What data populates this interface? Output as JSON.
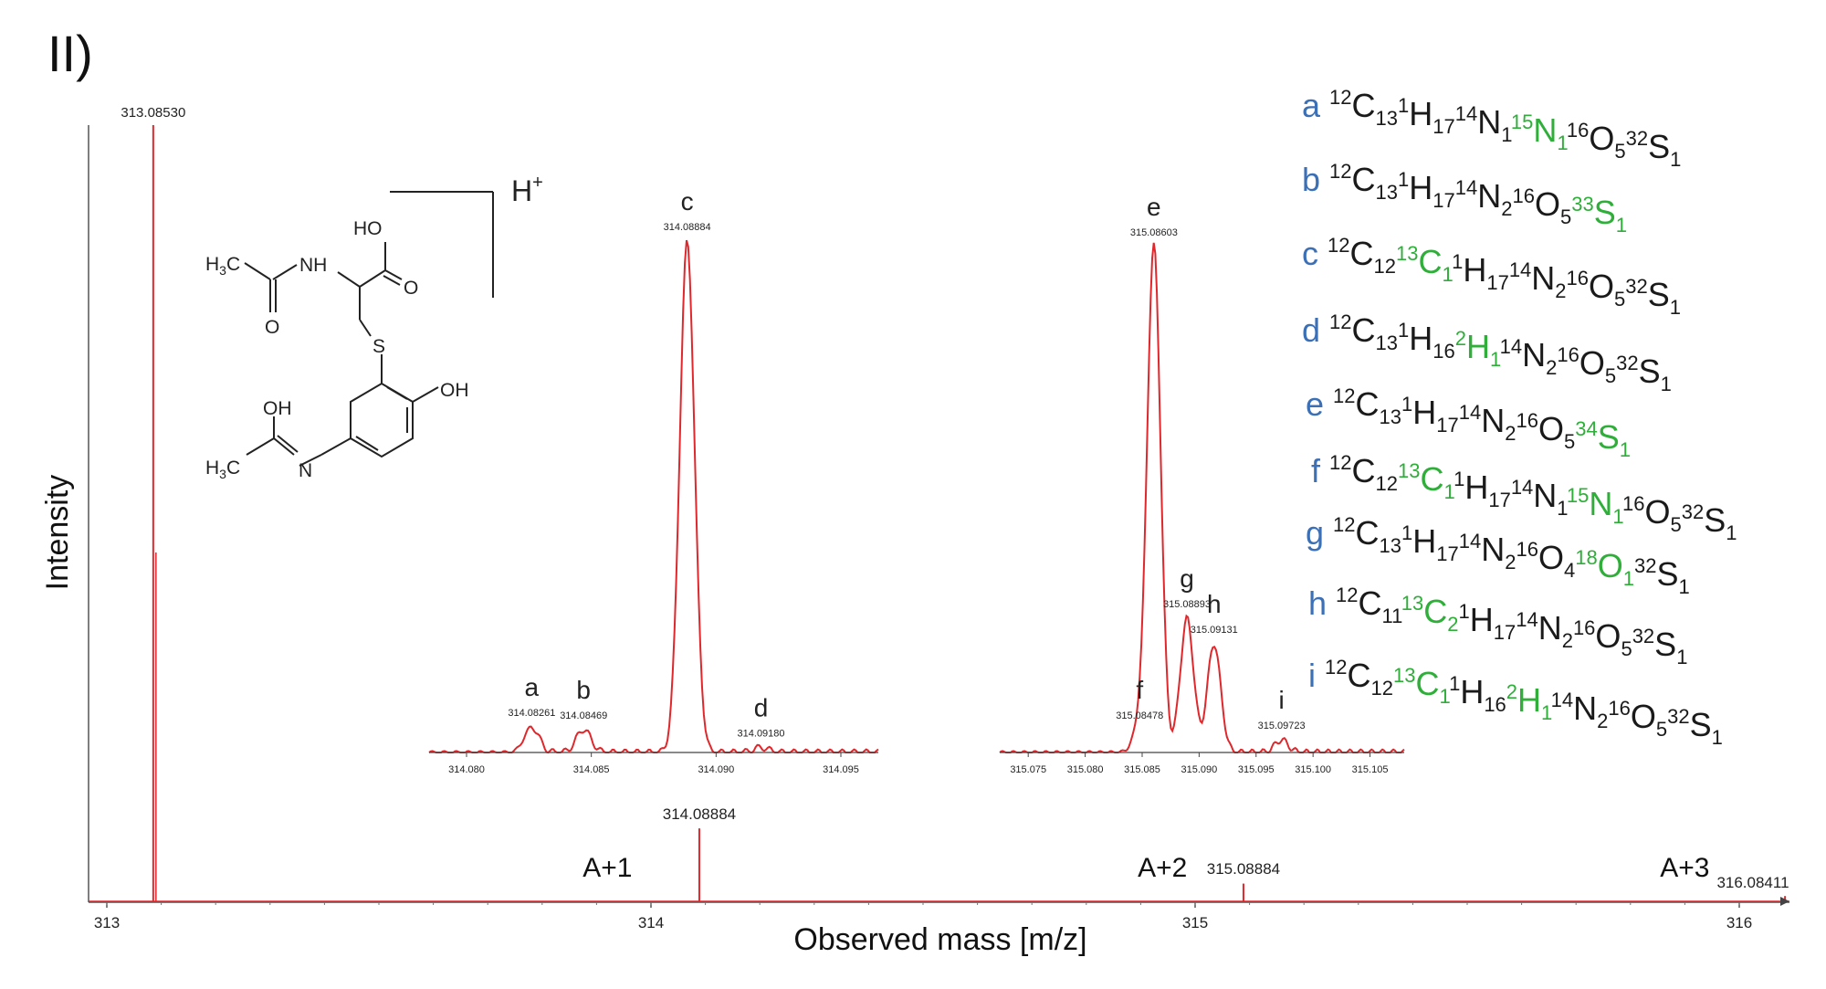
{
  "panel_label": "II)",
  "colors": {
    "trace": "#e0272b",
    "axis": "#555555",
    "letter": "#3b6fb6",
    "isotope": "#2fae3a",
    "text": "#1a1a1a"
  },
  "structure_labels": {
    "h3c_top": "H3C",
    "nh": "NH",
    "o_top": "O",
    "ho": "HO",
    "o_acid": "O",
    "s": "S",
    "oh_ring": "OH",
    "oh_amide": "OH",
    "h3c_bottom": "H3C",
    "n": "N",
    "charge": "H+"
  },
  "chart_data": [
    {
      "id": "main",
      "type": "line",
      "xlabel": "Observed mass [m/z]",
      "ylabel": "Intensity",
      "xlim": [
        313.0,
        316.15
      ],
      "xticks": [
        313,
        314,
        315,
        316
      ],
      "peaks": [
        {
          "x": 313.0853,
          "y": 1.0,
          "label": "313.08530"
        },
        {
          "x": 314.08884,
          "y": 0.095,
          "label": "314.08884"
        },
        {
          "x": 315.08884,
          "y": 0.024,
          "label": "315.08884"
        },
        {
          "x": 316.08411,
          "y": 0.008,
          "label": "316.08411"
        }
      ],
      "annotations": [
        {
          "text": "A+1",
          "x": 313.92
        },
        {
          "text": "A+2",
          "x": 314.94
        },
        {
          "text": "A+3",
          "x": 315.9
        }
      ]
    },
    {
      "id": "inset-A1",
      "type": "line",
      "xlim": [
        314.0785,
        314.0965
      ],
      "xticks": [
        "314.080",
        "314.085",
        "314.090",
        "314.095"
      ],
      "peaks": [
        {
          "x": 314.08261,
          "y": 0.05,
          "label": "314.08261",
          "letter": "a"
        },
        {
          "x": 314.08469,
          "y": 0.045,
          "label": "314.08469",
          "letter": "b"
        },
        {
          "x": 314.08884,
          "y": 1.0,
          "label": "314.08884",
          "letter": "c"
        },
        {
          "x": 314.0918,
          "y": 0.01,
          "label": "314.09180",
          "letter": "d"
        }
      ]
    },
    {
      "id": "inset-A2",
      "type": "line",
      "xlim": [
        315.0725,
        315.108
      ],
      "xticks": [
        "315.075",
        "315.080",
        "315.085",
        "315.090",
        "315.095",
        "315.100",
        "315.105"
      ],
      "peaks": [
        {
          "x": 315.08603,
          "y": 1.0,
          "label": "315.08603",
          "letter": "e"
        },
        {
          "x": 315.08478,
          "y": 0.045,
          "label": "315.08478",
          "letter": "f"
        },
        {
          "x": 315.08893,
          "y": 0.265,
          "label": "315.08893",
          "letter": "g"
        },
        {
          "x": 315.09131,
          "y": 0.215,
          "label": "315.09131",
          "letter": "h"
        },
        {
          "x": 315.09723,
          "y": 0.025,
          "label": "315.09723",
          "letter": "i"
        }
      ]
    }
  ],
  "formulas": [
    {
      "letter": "a",
      "parts": [
        [
          "12",
          "C",
          "13",
          "n"
        ],
        [
          "1",
          "H",
          "17",
          "n"
        ],
        [
          "14",
          "N",
          "1",
          "n"
        ],
        [
          "15",
          "N",
          "1",
          "i"
        ],
        [
          "16",
          "O",
          "5",
          "n"
        ],
        [
          "32",
          "S",
          "1",
          "n"
        ]
      ]
    },
    {
      "letter": "b",
      "parts": [
        [
          "12",
          "C",
          "13",
          "n"
        ],
        [
          "1",
          "H",
          "17",
          "n"
        ],
        [
          "14",
          "N",
          "2",
          "n"
        ],
        [
          "16",
          "O",
          "5",
          "n"
        ],
        [
          "33",
          "S",
          "1",
          "i"
        ]
      ]
    },
    {
      "letter": "c",
      "parts": [
        [
          "12",
          "C",
          "12",
          "n"
        ],
        [
          "13",
          "C",
          "1",
          "i"
        ],
        [
          "1",
          "H",
          "17",
          "n"
        ],
        [
          "14",
          "N",
          "2",
          "n"
        ],
        [
          "16",
          "O",
          "5",
          "n"
        ],
        [
          "32",
          "S",
          "1",
          "n"
        ]
      ]
    },
    {
      "letter": "d",
      "parts": [
        [
          "12",
          "C",
          "13",
          "n"
        ],
        [
          "1",
          "H",
          "16",
          "n"
        ],
        [
          "2",
          "H",
          "1",
          "i"
        ],
        [
          "14",
          "N",
          "2",
          "n"
        ],
        [
          "16",
          "O",
          "5",
          "n"
        ],
        [
          "32",
          "S",
          "1",
          "n"
        ]
      ]
    },
    {
      "letter": "e",
      "parts": [
        [
          "12",
          "C",
          "13",
          "n"
        ],
        [
          "1",
          "H",
          "17",
          "n"
        ],
        [
          "14",
          "N",
          "2",
          "n"
        ],
        [
          "16",
          "O",
          "5",
          "n"
        ],
        [
          "34",
          "S",
          "1",
          "i"
        ]
      ]
    },
    {
      "letter": "f",
      "parts": [
        [
          "12",
          "C",
          "12",
          "n"
        ],
        [
          "13",
          "C",
          "1",
          "i"
        ],
        [
          "1",
          "H",
          "17",
          "n"
        ],
        [
          "14",
          "N",
          "1",
          "n"
        ],
        [
          "15",
          "N",
          "1",
          "i"
        ],
        [
          "16",
          "O",
          "5",
          "n"
        ],
        [
          "32",
          "S",
          "1",
          "n"
        ]
      ]
    },
    {
      "letter": "g",
      "parts": [
        [
          "12",
          "C",
          "13",
          "n"
        ],
        [
          "1",
          "H",
          "17",
          "n"
        ],
        [
          "14",
          "N",
          "2",
          "n"
        ],
        [
          "16",
          "O",
          "4",
          "n"
        ],
        [
          "18",
          "O",
          "1",
          "i"
        ],
        [
          "32",
          "S",
          "1",
          "n"
        ]
      ]
    },
    {
      "letter": "h",
      "parts": [
        [
          "12",
          "C",
          "11",
          "n"
        ],
        [
          "13",
          "C",
          "2",
          "i"
        ],
        [
          "1",
          "H",
          "17",
          "n"
        ],
        [
          "14",
          "N",
          "2",
          "n"
        ],
        [
          "16",
          "O",
          "5",
          "n"
        ],
        [
          "32",
          "S",
          "1",
          "n"
        ]
      ]
    },
    {
      "letter": "i",
      "parts": [
        [
          "12",
          "C",
          "12",
          "n"
        ],
        [
          "13",
          "C",
          "1",
          "i"
        ],
        [
          "1",
          "H",
          "16",
          "n"
        ],
        [
          "2",
          "H",
          "1",
          "i"
        ],
        [
          "14",
          "N",
          "2",
          "n"
        ],
        [
          "16",
          "O",
          "5",
          "n"
        ],
        [
          "32",
          "S",
          "1",
          "n"
        ]
      ]
    }
  ]
}
